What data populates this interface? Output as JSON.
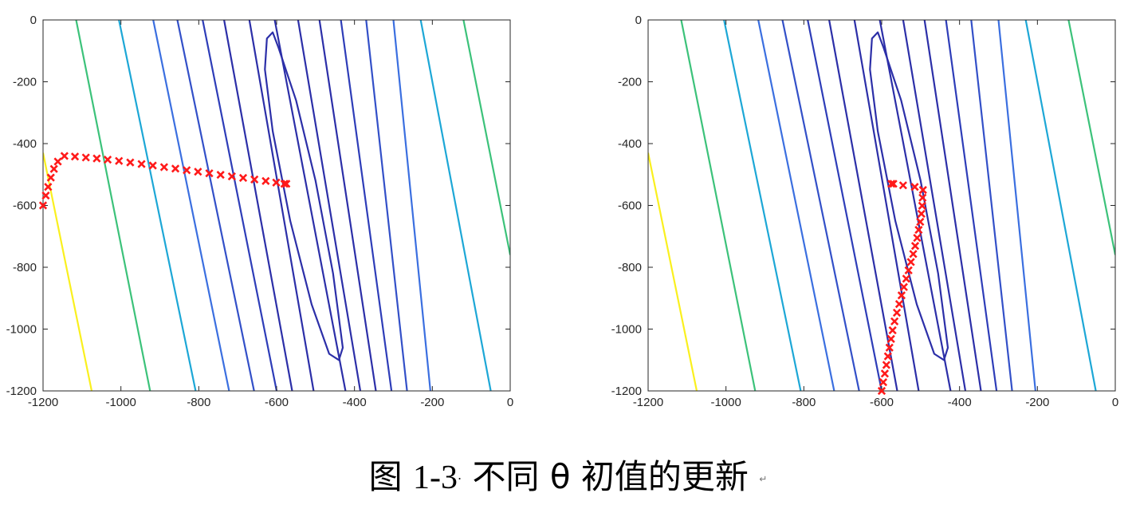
{
  "caption": {
    "prefix": "图",
    "number": "1-3",
    "separator": "·",
    "text": "不同 θ 初值的更新",
    "return_mark": "↵"
  },
  "chart_data": [
    {
      "type": "contour",
      "xlim": [
        -1200,
        0
      ],
      "ylim": [
        -1200,
        0
      ],
      "y_axis_direction": "down",
      "xticks": [
        "-1200",
        "-1000",
        "-800",
        "-600",
        "-400",
        "-200",
        "0"
      ],
      "yticks": [
        "0",
        "-200",
        "-400",
        "-600",
        "-800",
        "-1000",
        "-1200"
      ],
      "grid": false,
      "contours": [
        {
          "color": "#faf01e",
          "points": [
            [
              -1200,
              -430
            ],
            [
              -1075,
              -1200
            ]
          ]
        },
        {
          "color": "#3cc27a",
          "points": [
            [
              -1115,
              0
            ],
            [
              -925,
              -1200
            ]
          ]
        },
        {
          "color": "#1da7d6",
          "points": [
            [
              -1005,
              0
            ],
            [
              -808,
              -1200
            ]
          ]
        },
        {
          "color": "#3b6fe0",
          "points": [
            [
              -917,
              0
            ],
            [
              -722,
              -1200
            ]
          ]
        },
        {
          "color": "#3350c8",
          "points": [
            [
              -855,
              0
            ],
            [
              -658,
              -1200
            ]
          ]
        },
        {
          "color": "#2e3db8",
          "points": [
            [
              -790,
              0
            ],
            [
              -600,
              -1200
            ]
          ]
        },
        {
          "color": "#2c2fa8",
          "points": [
            [
              -735,
              0
            ],
            [
              -560,
              -1200
            ]
          ]
        },
        {
          "color": "#2c2fa8",
          "points": [
            [
              -670,
              0
            ],
            [
              -505,
              -1200
            ]
          ]
        },
        {
          "color": "#2c2fa8",
          "points": [
            [
              -605,
              0
            ],
            [
              -423,
              -1200
            ]
          ]
        },
        {
          "color": "#2c2fa8",
          "points": [
            [
              -545,
              0
            ],
            [
              -385,
              -1200
            ]
          ]
        },
        {
          "color": "#2c2fa8",
          "points": [
            [
              -490,
              0
            ],
            [
              -345,
              -1200
            ]
          ]
        },
        {
          "color": "#2e3db8",
          "points": [
            [
              -435,
              0
            ],
            [
              -305,
              -1200
            ]
          ]
        },
        {
          "color": "#3350c8",
          "points": [
            [
              -370,
              0
            ],
            [
              -265,
              -1200
            ]
          ]
        },
        {
          "color": "#3b6fe0",
          "points": [
            [
              -300,
              0
            ],
            [
              -205,
              -1200
            ]
          ]
        },
        {
          "color": "#1da7d6",
          "points": [
            [
              -230,
              0
            ],
            [
              -50,
              -1200
            ]
          ]
        },
        {
          "color": "#3cc27a",
          "points": [
            [
              -120,
              0
            ],
            [
              0,
              -760
            ]
          ]
        },
        {
          "color": "#2c2fa8",
          "closed": true,
          "points": [
            [
              -610,
              -40
            ],
            [
              -595,
              -90
            ],
            [
              -550,
              -260
            ],
            [
              -500,
              -520
            ],
            [
              -455,
              -820
            ],
            [
              -430,
              -1060
            ],
            [
              -440,
              -1100
            ],
            [
              -465,
              -1080
            ],
            [
              -510,
              -920
            ],
            [
              -565,
              -650
            ],
            [
              -610,
              -360
            ],
            [
              -630,
              -160
            ],
            [
              -625,
              -60
            ]
          ]
        }
      ],
      "path_color": "#ff1a1a",
      "path": [
        [
          -1200,
          -600
        ],
        [
          -1193,
          -568
        ],
        [
          -1187,
          -540
        ],
        [
          -1180,
          -510
        ],
        [
          -1172,
          -482
        ],
        [
          -1162,
          -458
        ],
        [
          -1145,
          -440
        ],
        [
          -1118,
          -442
        ],
        [
          -1090,
          -445
        ],
        [
          -1062,
          -448
        ],
        [
          -1034,
          -452
        ],
        [
          -1005,
          -456
        ],
        [
          -976,
          -461
        ],
        [
          -947,
          -466
        ],
        [
          -918,
          -471
        ],
        [
          -889,
          -476
        ],
        [
          -860,
          -481
        ],
        [
          -831,
          -486
        ],
        [
          -802,
          -491
        ],
        [
          -773,
          -496
        ],
        [
          -744,
          -501
        ],
        [
          -715,
          -506
        ],
        [
          -686,
          -511
        ],
        [
          -657,
          -516
        ],
        [
          -628,
          -521
        ],
        [
          -601,
          -526
        ],
        [
          -580,
          -530
        ],
        [
          -575,
          -530
        ]
      ]
    },
    {
      "type": "contour",
      "xlim": [
        -1200,
        0
      ],
      "ylim": [
        -1200,
        0
      ],
      "y_axis_direction": "down",
      "xticks": [
        "-1200",
        "-1000",
        "-800",
        "-600",
        "-400",
        "-200",
        "0"
      ],
      "yticks": [
        "0",
        "-200",
        "-400",
        "-600",
        "-800",
        "-1000",
        "-1200"
      ],
      "grid": false,
      "contours": [
        {
          "color": "#faf01e",
          "points": [
            [
              -1200,
              -430
            ],
            [
              -1075,
              -1200
            ]
          ]
        },
        {
          "color": "#3cc27a",
          "points": [
            [
              -1115,
              0
            ],
            [
              -925,
              -1200
            ]
          ]
        },
        {
          "color": "#1da7d6",
          "points": [
            [
              -1005,
              0
            ],
            [
              -808,
              -1200
            ]
          ]
        },
        {
          "color": "#3b6fe0",
          "points": [
            [
              -917,
              0
            ],
            [
              -722,
              -1200
            ]
          ]
        },
        {
          "color": "#3350c8",
          "points": [
            [
              -855,
              0
            ],
            [
              -658,
              -1200
            ]
          ]
        },
        {
          "color": "#2e3db8",
          "points": [
            [
              -790,
              0
            ],
            [
              -600,
              -1200
            ]
          ]
        },
        {
          "color": "#2c2fa8",
          "points": [
            [
              -735,
              0
            ],
            [
              -560,
              -1200
            ]
          ]
        },
        {
          "color": "#2c2fa8",
          "points": [
            [
              -670,
              0
            ],
            [
              -505,
              -1200
            ]
          ]
        },
        {
          "color": "#2c2fa8",
          "points": [
            [
              -605,
              0
            ],
            [
              -423,
              -1200
            ]
          ]
        },
        {
          "color": "#2c2fa8",
          "points": [
            [
              -545,
              0
            ],
            [
              -385,
              -1200
            ]
          ]
        },
        {
          "color": "#2c2fa8",
          "points": [
            [
              -490,
              0
            ],
            [
              -345,
              -1200
            ]
          ]
        },
        {
          "color": "#2e3db8",
          "points": [
            [
              -435,
              0
            ],
            [
              -305,
              -1200
            ]
          ]
        },
        {
          "color": "#3350c8",
          "points": [
            [
              -370,
              0
            ],
            [
              -265,
              -1200
            ]
          ]
        },
        {
          "color": "#3b6fe0",
          "points": [
            [
              -300,
              0
            ],
            [
              -205,
              -1200
            ]
          ]
        },
        {
          "color": "#1da7d6",
          "points": [
            [
              -230,
              0
            ],
            [
              -50,
              -1200
            ]
          ]
        },
        {
          "color": "#3cc27a",
          "points": [
            [
              -120,
              0
            ],
            [
              0,
              -760
            ]
          ]
        },
        {
          "color": "#2c2fa8",
          "closed": true,
          "points": [
            [
              -610,
              -40
            ],
            [
              -595,
              -90
            ],
            [
              -550,
              -260
            ],
            [
              -500,
              -520
            ],
            [
              -455,
              -820
            ],
            [
              -430,
              -1060
            ],
            [
              -440,
              -1100
            ],
            [
              -465,
              -1080
            ],
            [
              -510,
              -920
            ],
            [
              -565,
              -650
            ],
            [
              -610,
              -360
            ],
            [
              -630,
              -160
            ],
            [
              -625,
              -60
            ]
          ]
        }
      ],
      "path_color": "#ff1a1a",
      "path": [
        [
          -600,
          -1200
        ],
        [
          -596,
          -1172
        ],
        [
          -592,
          -1144
        ],
        [
          -588,
          -1116
        ],
        [
          -584,
          -1088
        ],
        [
          -580,
          -1060
        ],
        [
          -576,
          -1032
        ],
        [
          -572,
          -1004
        ],
        [
          -567,
          -975
        ],
        [
          -561,
          -947
        ],
        [
          -555,
          -919
        ],
        [
          -549,
          -891
        ],
        [
          -543,
          -864
        ],
        [
          -537,
          -837
        ],
        [
          -531,
          -810
        ],
        [
          -525,
          -783
        ],
        [
          -519,
          -757
        ],
        [
          -514,
          -731
        ],
        [
          -509,
          -705
        ],
        [
          -505,
          -679
        ],
        [
          -501,
          -653
        ],
        [
          -498,
          -627
        ],
        [
          -496,
          -601
        ],
        [
          -495,
          -575
        ],
        [
          -494,
          -550
        ],
        [
          -515,
          -540
        ],
        [
          -545,
          -535
        ],
        [
          -570,
          -530
        ],
        [
          -575,
          -530
        ]
      ]
    }
  ]
}
